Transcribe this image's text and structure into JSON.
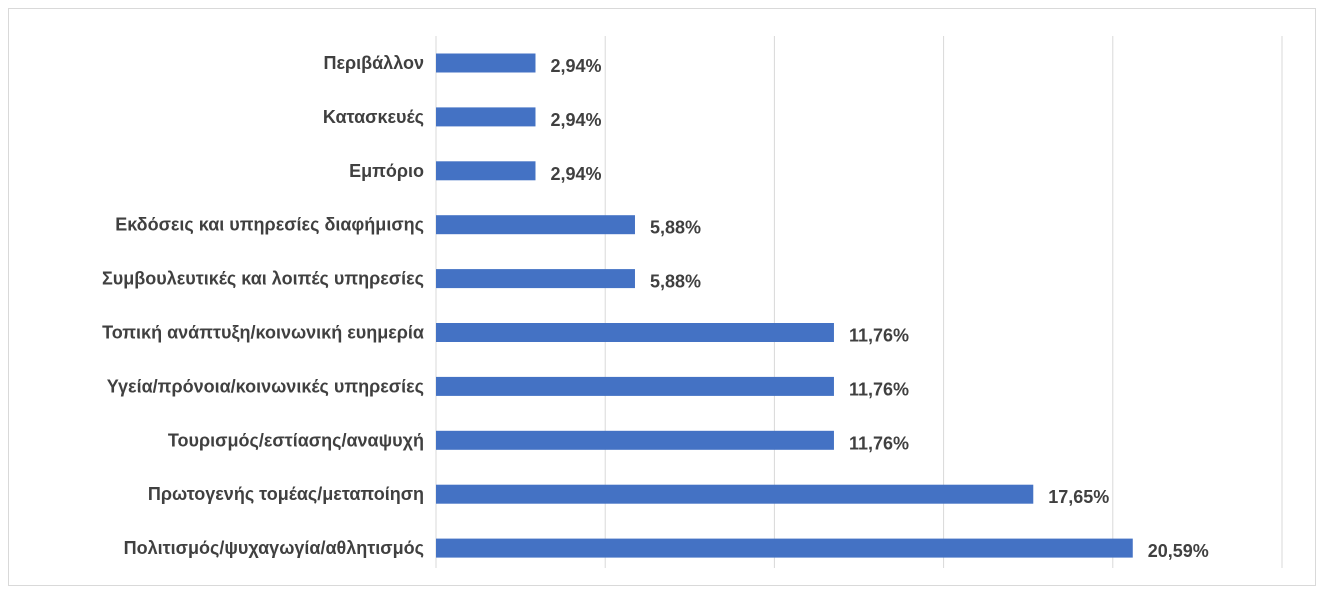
{
  "chart_data": {
    "type": "bar",
    "orientation": "horizontal",
    "categories": [
      "Περιβάλλον",
      "Κατασκευές",
      "Εμπόριο",
      "Εκδόσεις και υπηρεσίες διαφήμισης",
      "Συμβουλευτικές και λοιπές υπηρεσίες",
      "Τοπική ανάπτυξη/κοινωνική ευημερία",
      "Υγεία/πρόνοια/κοινωνικές υπηρεσίες",
      "Τουρισμός/εστίασης/αναψυχή",
      "Πρωτογενής τομέας/μεταποίηση",
      "Πολιτισμός/ψυχαγωγία/αθλητισμός"
    ],
    "values": [
      2.94,
      2.94,
      2.94,
      5.88,
      5.88,
      11.76,
      11.76,
      11.76,
      17.65,
      20.59
    ],
    "value_labels": [
      "2,94%",
      "2,94%",
      "2,94%",
      "5,88%",
      "5,88%",
      "11,76%",
      "11,76%",
      "11,76%",
      "17,65%",
      "20,59%"
    ],
    "title": "",
    "xlabel": "",
    "ylabel": "",
    "xlim": [
      0,
      25
    ],
    "gridlines": true,
    "legend": "none",
    "bar_color": "#4472C4",
    "grid_color": "#d9d9d9",
    "label_color": "#404040"
  }
}
